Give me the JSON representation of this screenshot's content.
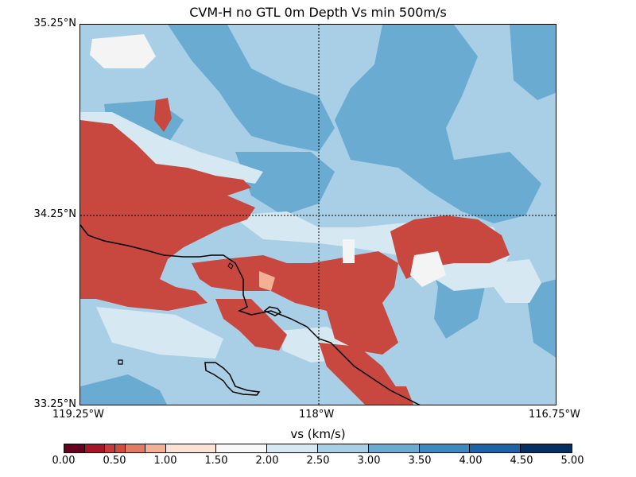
{
  "title": "CVM-H no GTL 0m Depth Vs min 500m/s",
  "map": {
    "lat_labels": [
      "35.25°N",
      "34.25°N",
      "33.25°N"
    ],
    "lon_labels": [
      "119.25°W",
      "118°W",
      "116.75°W"
    ]
  },
  "colorbar": {
    "label": "vs (km/s)",
    "tick_labels": [
      "0.00",
      "0.50",
      "1.00",
      "1.50",
      "2.00",
      "2.50",
      "3.00",
      "3.50",
      "4.00",
      "4.50",
      "5.00"
    ],
    "bins": [
      {
        "from": 0.0,
        "to": 0.2,
        "color": "#67001f"
      },
      {
        "from": 0.2,
        "to": 0.4,
        "color": "#a3162a"
      },
      {
        "from": 0.4,
        "to": 0.5,
        "color": "#c53b3b"
      },
      {
        "from": 0.5,
        "to": 0.6,
        "color": "#d24b40"
      },
      {
        "from": 0.6,
        "to": 0.8,
        "color": "#e27b64"
      },
      {
        "from": 0.8,
        "to": 1.0,
        "color": "#f4b094"
      },
      {
        "from": 1.0,
        "to": 1.5,
        "color": "#fbe2d5"
      },
      {
        "from": 1.5,
        "to": 2.0,
        "color": "#f8f8f8"
      },
      {
        "from": 2.0,
        "to": 2.5,
        "color": "#d6e8f2"
      },
      {
        "from": 2.5,
        "to": 3.0,
        "color": "#a7cfe5"
      },
      {
        "from": 3.0,
        "to": 3.5,
        "color": "#6aabd2"
      },
      {
        "from": 3.5,
        "to": 4.0,
        "color": "#3c89c2"
      },
      {
        "from": 4.0,
        "to": 4.5,
        "color": "#1c63a8"
      },
      {
        "from": 4.5,
        "to": 5.0,
        "color": "#053061"
      }
    ]
  },
  "colors": {
    "low_vs": "#c8473e",
    "mid_vs": "#a9cfe6",
    "high_vs": "#6aabd2",
    "near_2kms": "#d6e8f2",
    "near_1_5kms": "#f4f4f4",
    "coastline": "#000000"
  }
}
